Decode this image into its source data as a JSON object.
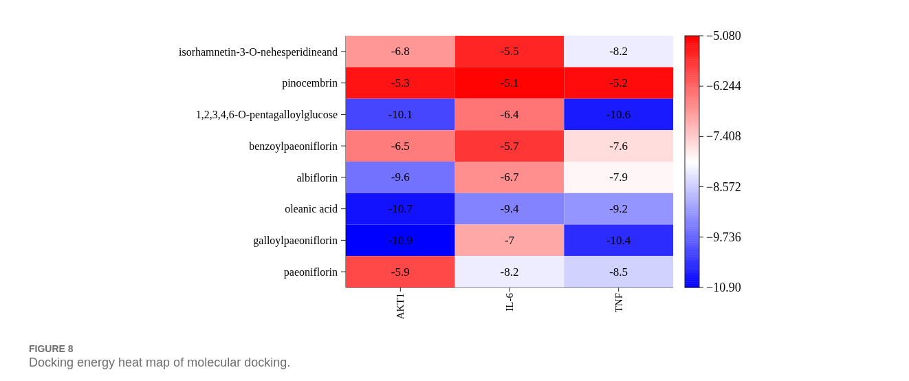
{
  "chart_data": {
    "type": "heatmap",
    "categories": [
      "AKT1",
      "IL-6",
      "TNF"
    ],
    "y_categories": [
      "isorhamnetin-3-O-nehesperidineand",
      "pinocembrin",
      "1,2,3,4,6-O-pentagalloylglucose",
      "benzoylpaeoniflorin",
      "albiflorin",
      "oleanic acid",
      "galloylpaeoniflorin",
      "paeoniflorin"
    ],
    "cells": [
      [
        -6.8,
        -5.5,
        -8.2
      ],
      [
        -5.3,
        -5.1,
        -5.2
      ],
      [
        -10.1,
        -6.4,
        -10.6
      ],
      [
        -6.5,
        -5.7,
        -7.6
      ],
      [
        -9.6,
        -6.7,
        -7.9
      ],
      [
        -10.7,
        -9.4,
        -9.2
      ],
      [
        -10.9,
        -7,
        -10.4
      ],
      [
        -5.9,
        -8.2,
        -8.5
      ]
    ],
    "data_labels": true,
    "clim": [
      -10.9,
      -5.08
    ],
    "cticks": [
      {
        "value": -5.08,
        "label": "−5.080"
      },
      {
        "value": -6.244,
        "label": "−6.244"
      },
      {
        "value": -7.408,
        "label": "−7.408"
      },
      {
        "value": -8.572,
        "label": "−8.572"
      },
      {
        "value": -9.736,
        "label": "−9.736"
      },
      {
        "value": -10.9,
        "label": "−10.90"
      }
    ],
    "annotations": [
      "FIGURE 8",
      "Docking energy heat map of molecular docking."
    ]
  }
}
